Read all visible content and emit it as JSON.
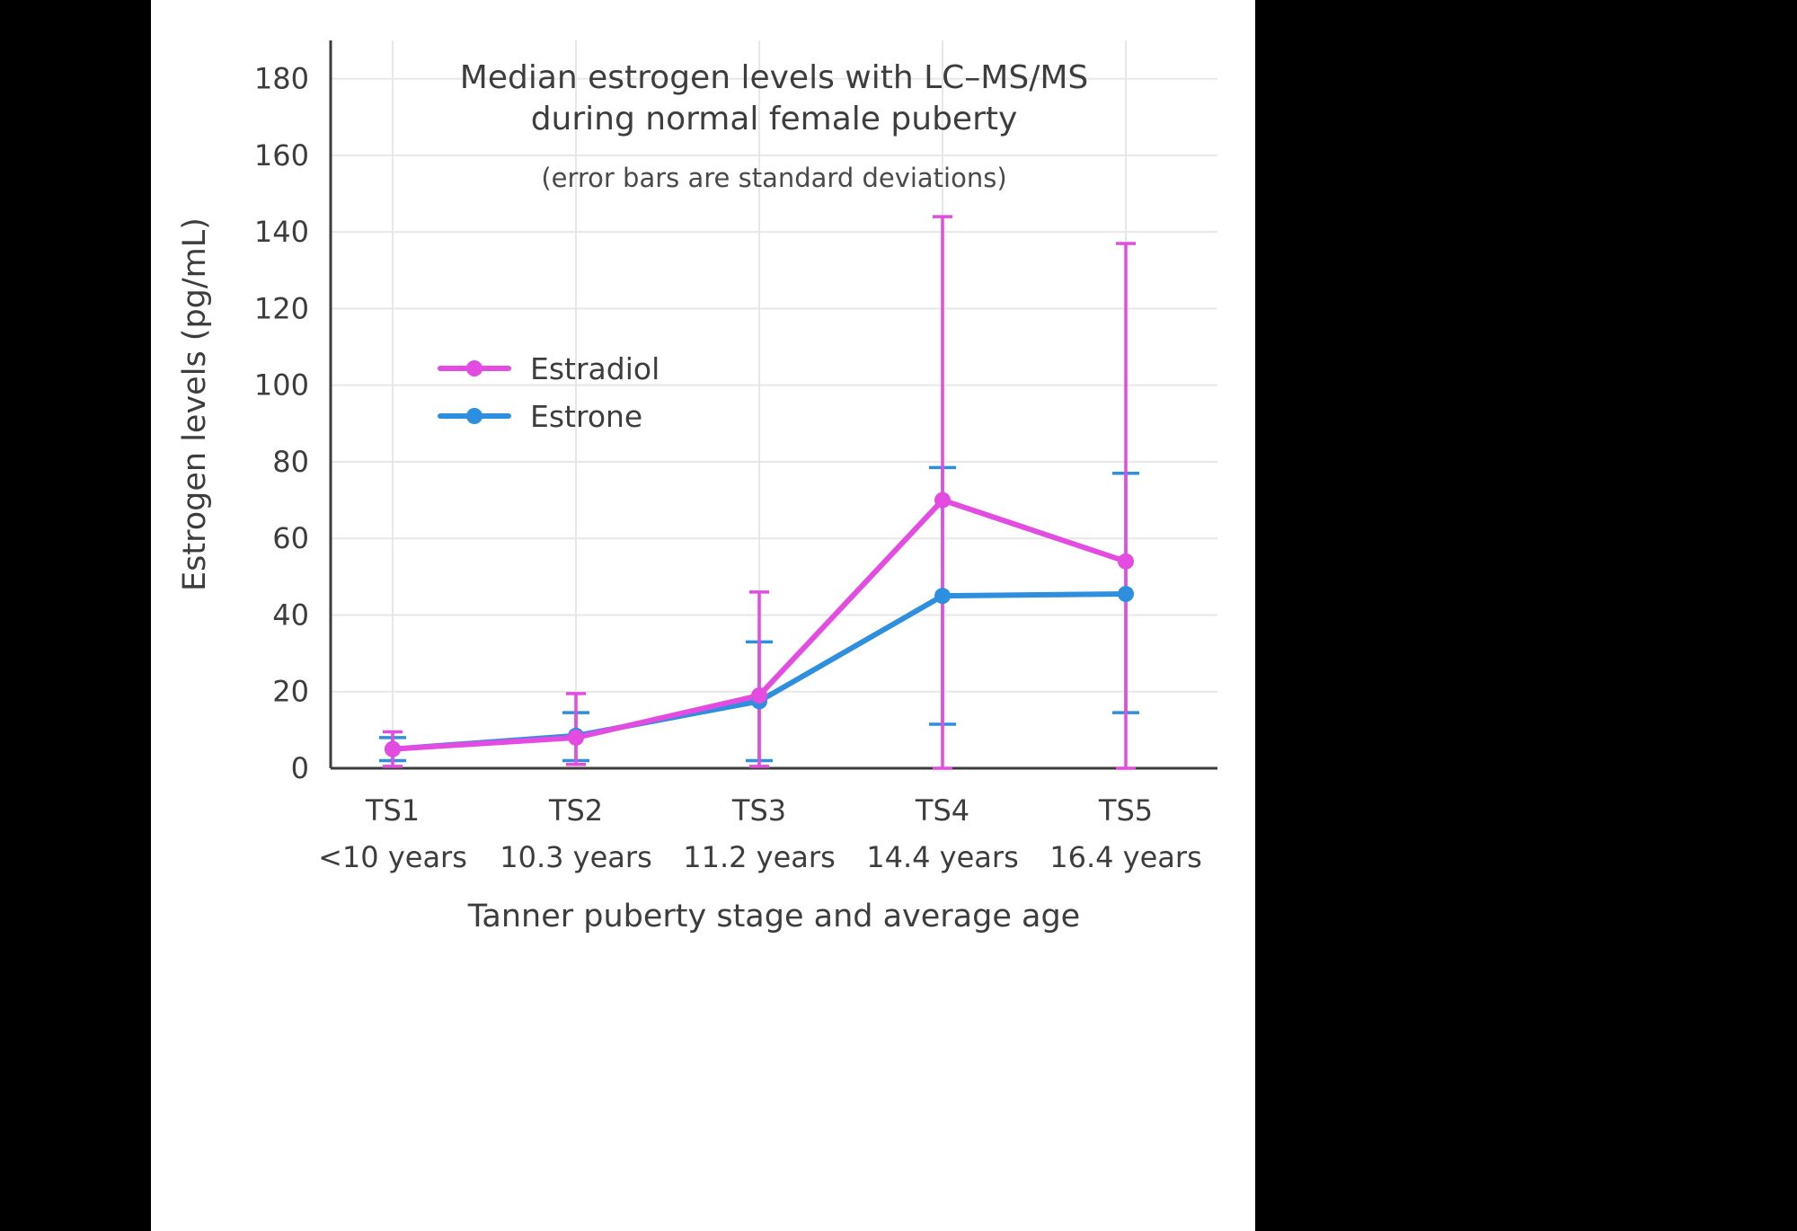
{
  "page": {
    "background": "#000000",
    "panel_background": "#ffffff"
  },
  "chart_data": {
    "type": "line",
    "title": "Median estrogen levels with LC–MS/MS during normal female puberty",
    "title_lines": [
      "Median estrogen levels with LC–MS/MS",
      "during normal female puberty"
    ],
    "subtitle": "(error bars are standard deviations)",
    "xlabel": "Tanner puberty stage and average age",
    "ylabel": "Estrogen levels (pg/mL)",
    "ylim": [
      0,
      190
    ],
    "yticks": [
      0,
      20,
      40,
      60,
      80,
      100,
      120,
      140,
      160,
      180
    ],
    "categories": [
      "TS1",
      "TS2",
      "TS3",
      "TS4",
      "TS5"
    ],
    "category_ages": [
      "<10 years",
      "10.3 years",
      "11.2 years",
      "14.4 years",
      "16.4 years"
    ],
    "grid": true,
    "legend_position": "inside-upper-left",
    "legend": [
      "Estradiol",
      "Estrone"
    ],
    "series": [
      {
        "name": "Estradiol",
        "color": "#e44be0",
        "values": [
          5,
          8,
          19,
          70,
          54
        ],
        "error_low": [
          0.5,
          1,
          0.5,
          0,
          0
        ],
        "error_high": [
          9.5,
          19.5,
          46,
          144,
          137
        ]
      },
      {
        "name": "Estrone",
        "color": "#2e8fdf",
        "values": [
          5,
          8.5,
          17.5,
          45,
          45.5
        ],
        "error_low": [
          2,
          2,
          2,
          11.5,
          14.5
        ],
        "error_high": [
          8,
          14.5,
          33,
          78.5,
          77
        ]
      }
    ],
    "axis_color": "#3c3c3c",
    "grid_color": "#e7e7e7",
    "text_color": "#3d3d3d"
  }
}
